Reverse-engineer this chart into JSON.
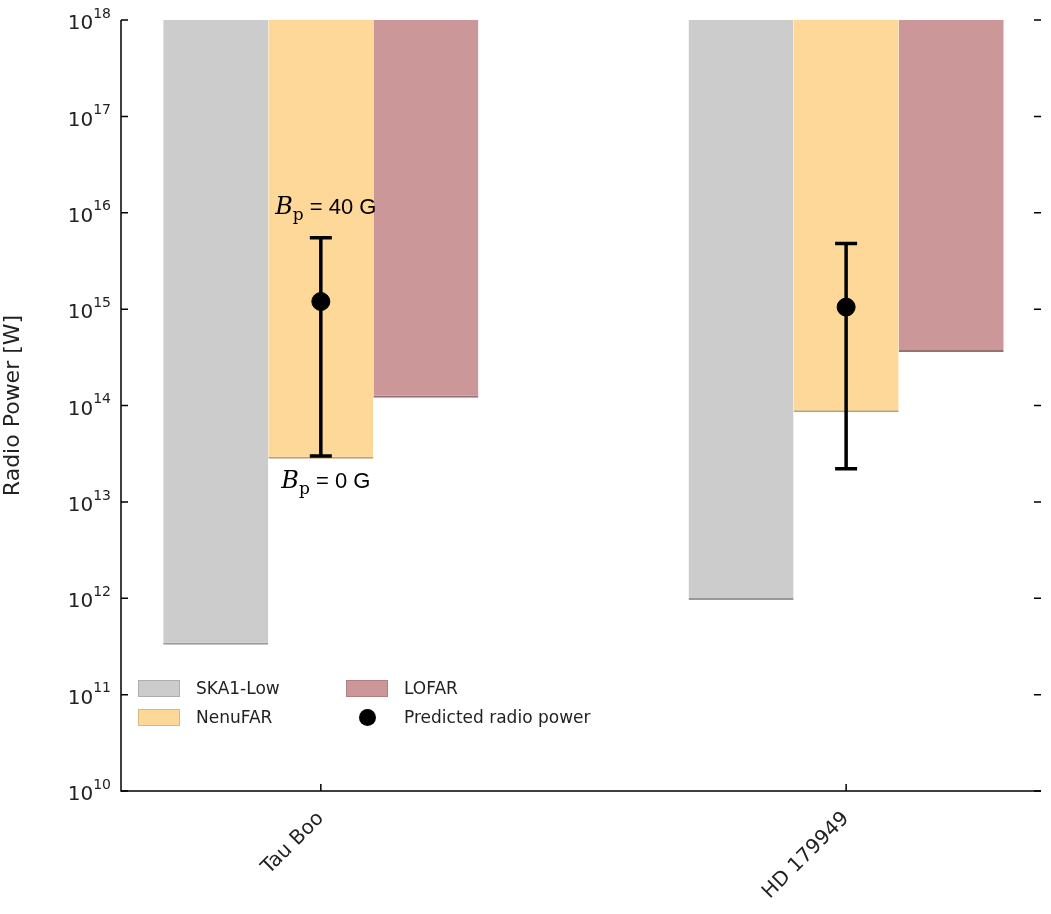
{
  "chart_data": {
    "type": "bar",
    "categories": [
      "Tau Boo",
      "HD 179949"
    ],
    "ylabel": "Radio Power [W]",
    "log": true,
    "ylim": [
      10000000000.0,
      1e+18
    ],
    "legend": "bottom left",
    "grid": false,
    "yticks": [
      {
        "value": 10000000000.0,
        "label": "10$^{10}$"
      },
      {
        "value": 100000000000.0,
        "label": "10$^{11}$"
      },
      {
        "value": 1000000000000.0,
        "label": "10$^{12}$"
      },
      {
        "value": 10000000000000.0,
        "label": "10$^{13}$"
      },
      {
        "value": 100000000000000.0,
        "label": "10$^{14}$"
      },
      {
        "value": 1000000000000000.0,
        "label": "10$^{15}$"
      },
      {
        "value": 1e+16,
        "label": "10$^{16}$"
      },
      {
        "value": 1e+17,
        "label": "10$^{17}$"
      },
      {
        "value": 1e+18,
        "label": "10$^{18}$"
      }
    ],
    "series": [
      {
        "name": "SKA1-Low",
        "color": "#cccccc",
        "base": [
          330000000000.0,
          960000000000.0
        ],
        "values": [
          9.9999967e+17,
          9.9999904e+17
        ]
      },
      {
        "name": "NenuFAR",
        "color": "#fed898",
        "base": [
          28000000000000.0,
          85000000000000.0
        ],
        "values": [
          9.99972e+17,
          9.99915e+17
        ]
      },
      {
        "name": "LOFAR",
        "color": "#cc9799",
        "base": [
          120000000000000.0,
          360000000000000.0
        ],
        "values": [
          9.9988e+17,
          9.9964e+17
        ]
      },
      {
        "name": "Predicted radio power",
        "type": "scatter",
        "marker": "circle",
        "color": "#000000",
        "x": [
          "Tau Boo",
          "HD 179949"
        ],
        "values": [
          1200000000000000.0,
          1050000000000000.0
        ],
        "errors": [
          [
            30000000000000.0,
            5500000000000000.0
          ],
          [
            22000000000000.0,
            4800000000000000.0
          ]
        ]
      }
    ],
    "annotations": [
      {
        "text": "B$_{p}$ = 40 G",
        "x": "Tau Boo",
        "y": 5500000000000000.0
      },
      {
        "text": "B$_{p}$ = 0 G",
        "x": "Tau Boo",
        "y": 30000000000000.0
      }
    ]
  }
}
